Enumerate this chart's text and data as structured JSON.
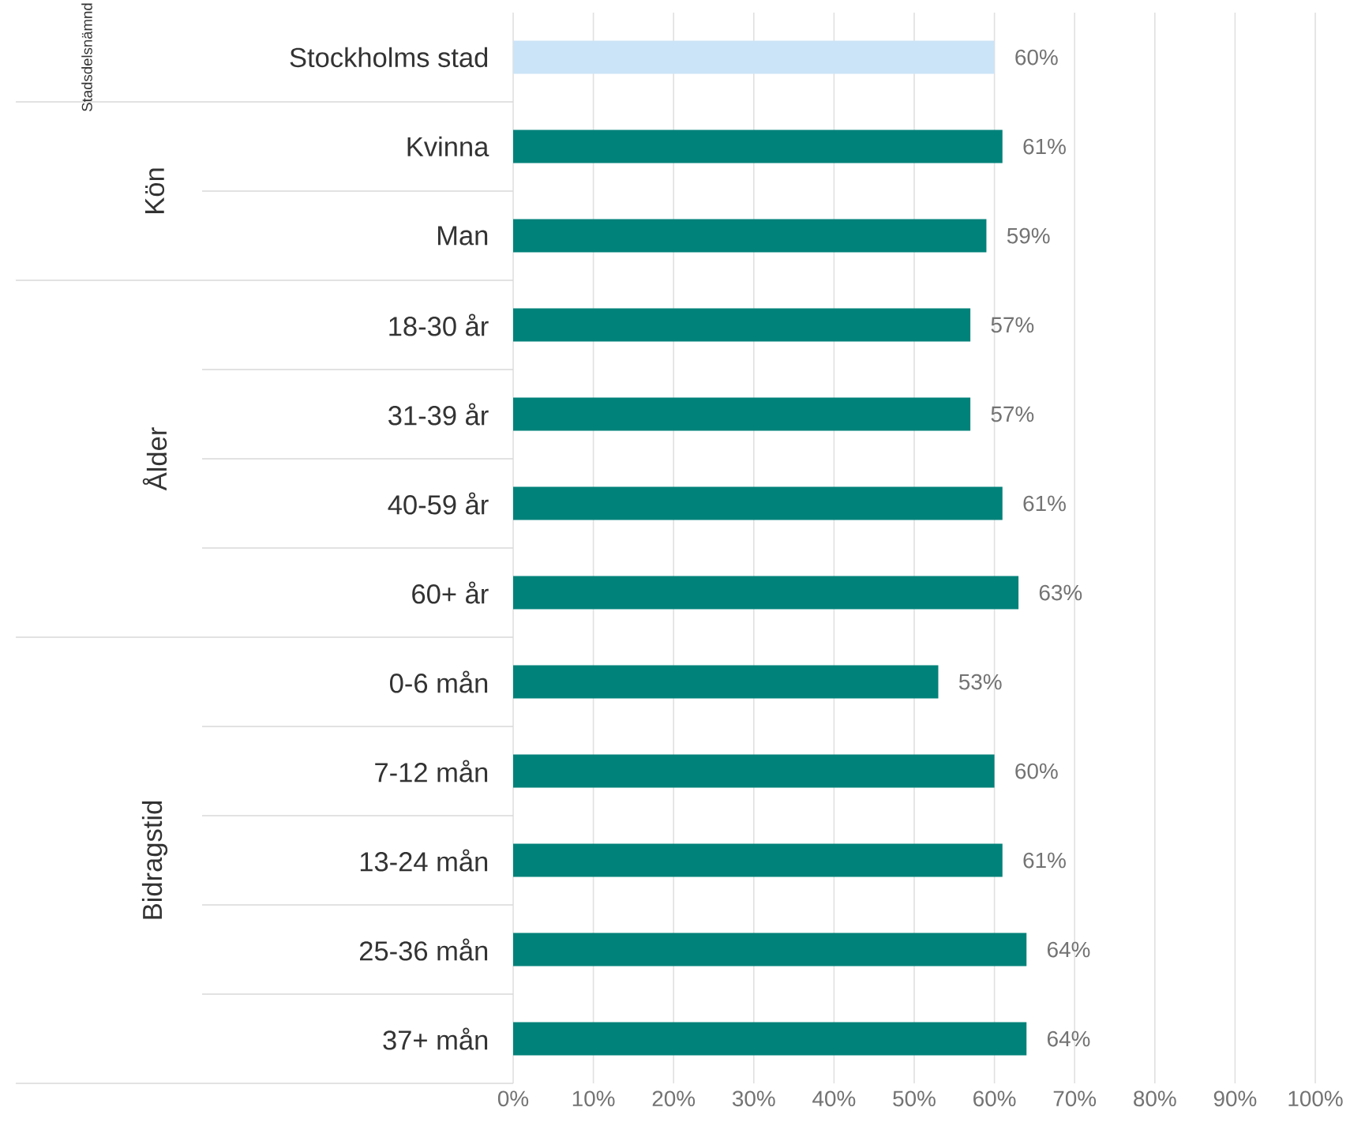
{
  "chart_data": {
    "type": "bar",
    "orientation": "horizontal",
    "categories": [
      "Stockholms stad",
      "Kvinna",
      "Man",
      "18-30 år",
      "31-39 år",
      "40-59 år",
      "60+ år",
      "0-6 mån",
      "7-12 mån",
      "13-24 mån",
      "25-36 mån",
      "37+ mån"
    ],
    "values": [
      60,
      61,
      59,
      57,
      57,
      61,
      63,
      53,
      60,
      61,
      64,
      64
    ],
    "value_labels": [
      "60%",
      "61%",
      "59%",
      "57%",
      "57%",
      "61%",
      "63%",
      "53%",
      "60%",
      "61%",
      "64%",
      "64%"
    ],
    "colors": [
      "#cce4f7",
      "#00827a",
      "#00827a",
      "#00827a",
      "#00827a",
      "#00827a",
      "#00827a",
      "#00827a",
      "#00827a",
      "#00827a",
      "#00827a",
      "#00827a"
    ],
    "xlim": [
      0,
      100
    ],
    "xticks": [
      {
        "value": 0,
        "label": "0%"
      },
      {
        "value": 10,
        "label": "10%"
      },
      {
        "value": 20,
        "label": "20%"
      },
      {
        "value": 30,
        "label": "30%"
      },
      {
        "value": 40,
        "label": "40%"
      },
      {
        "value": 50,
        "label": "50%"
      },
      {
        "value": 60,
        "label": "60%"
      },
      {
        "value": 70,
        "label": "70%"
      },
      {
        "value": 80,
        "label": "80%"
      },
      {
        "value": 90,
        "label": "90%"
      },
      {
        "value": 100,
        "label": "100%"
      }
    ],
    "grid": "x",
    "annotations": [
      "Stadsdelsnämnd",
      "Kön",
      "Ålder",
      "Bidragstid"
    ]
  }
}
